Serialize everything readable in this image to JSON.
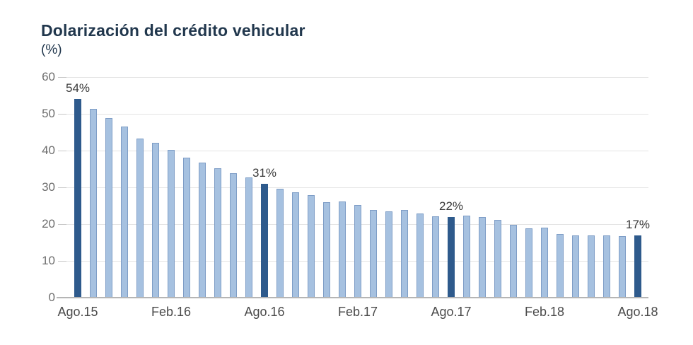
{
  "chart_data": {
    "type": "bar",
    "title": "Dolarización del crédito vehicular",
    "subtitle": "(%)",
    "xlabel": "",
    "ylabel": "",
    "ylim": [
      0,
      60
    ],
    "y_ticks": [
      0,
      10,
      20,
      30,
      40,
      50,
      60
    ],
    "grid": "horizontal",
    "legend": "none",
    "n_bars": 37,
    "x_range_note": "monthly bars from Ago.15 to Ago.18",
    "values": [
      54,
      51.3,
      48.8,
      46.5,
      43.2,
      42.1,
      40.2,
      38.1,
      36.8,
      35.1,
      33.8,
      32.6,
      31,
      29.7,
      28.7,
      27.9,
      25.9,
      26.1,
      25.2,
      23.8,
      23.4,
      23.8,
      22.9,
      22.2,
      22,
      22.3,
      22,
      21.2,
      19.9,
      18.9,
      19,
      17.3,
      16.9,
      17,
      17,
      16.7,
      17
    ],
    "x_ticks": [
      {
        "index": 0,
        "label": "Ago.15"
      },
      {
        "index": 6,
        "label": "Feb.16"
      },
      {
        "index": 12,
        "label": "Ago.16"
      },
      {
        "index": 18,
        "label": "Feb.17"
      },
      {
        "index": 24,
        "label": "Ago.17"
      },
      {
        "index": 30,
        "label": "Feb.18"
      },
      {
        "index": 36,
        "label": "Ago.18"
      }
    ],
    "highlight_indices": [
      0,
      12,
      24,
      36
    ],
    "annotations": [
      {
        "index": 0,
        "label": "54%"
      },
      {
        "index": 12,
        "label": "31%"
      },
      {
        "index": 24,
        "label": "22%"
      },
      {
        "index": 36,
        "label": "17%"
      }
    ],
    "colors": {
      "bar": "#a6c1e0",
      "bar_border": "#7e9dc6",
      "bar_highlight": "#2e5a8c",
      "title_text": "#21374d",
      "grid_line": "#e4e4e4",
      "grid_stub": "#c7c7c7",
      "axis_line": "#b5b5b5",
      "y_tick_text": "#6e6e6e",
      "x_tick_text": "#4b4b4b",
      "annotation_text": "#3a3a3a"
    }
  }
}
